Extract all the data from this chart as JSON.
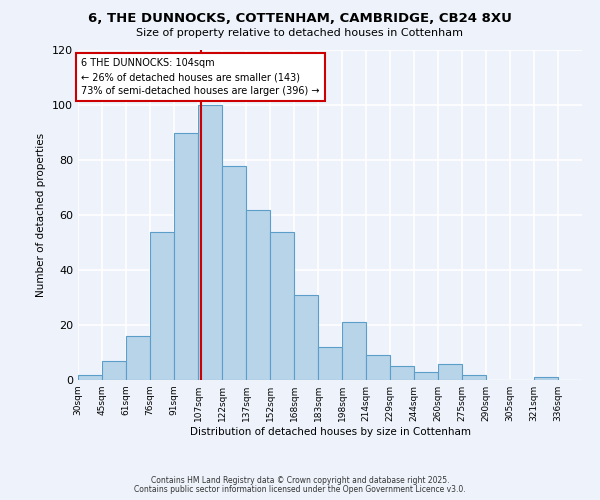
{
  "title1": "6, THE DUNNOCKS, COTTENHAM, CAMBRIDGE, CB24 8XU",
  "title2": "Size of property relative to detached houses in Cottenham",
  "xlabel": "Distribution of detached houses by size in Cottenham",
  "ylabel": "Number of detached properties",
  "bar_labels": [
    "30sqm",
    "45sqm",
    "61sqm",
    "76sqm",
    "91sqm",
    "107sqm",
    "122sqm",
    "137sqm",
    "152sqm",
    "168sqm",
    "183sqm",
    "198sqm",
    "214sqm",
    "229sqm",
    "244sqm",
    "260sqm",
    "275sqm",
    "290sqm",
    "305sqm",
    "321sqm",
    "336sqm"
  ],
  "bar_values": [
    2,
    7,
    16,
    54,
    90,
    100,
    78,
    62,
    54,
    31,
    12,
    21,
    9,
    5,
    3,
    6,
    2,
    0,
    0,
    1,
    0
  ],
  "bar_color": "#b8d4e8",
  "bar_edge_color": "#5a9ec9",
  "reference_line_x": 104,
  "reference_line_color": "#cc0000",
  "annotation_line1": "6 THE DUNNOCKS: 104sqm",
  "annotation_line2": "← 26% of detached houses are smaller (143)",
  "annotation_line3": "73% of semi-detached houses are larger (396) →",
  "annotation_box_color": "#ffffff",
  "annotation_box_edge_color": "#cc0000",
  "ylim": [
    0,
    120
  ],
  "yticks": [
    0,
    20,
    40,
    60,
    80,
    100,
    120
  ],
  "footer1": "Contains HM Land Registry data © Crown copyright and database right 2025.",
  "footer2": "Contains public sector information licensed under the Open Government Licence v3.0.",
  "bg_color": "#eef3fb",
  "plot_bg_color": "#eef3fb",
  "grid_color": "#ffffff",
  "bin_width": 15
}
